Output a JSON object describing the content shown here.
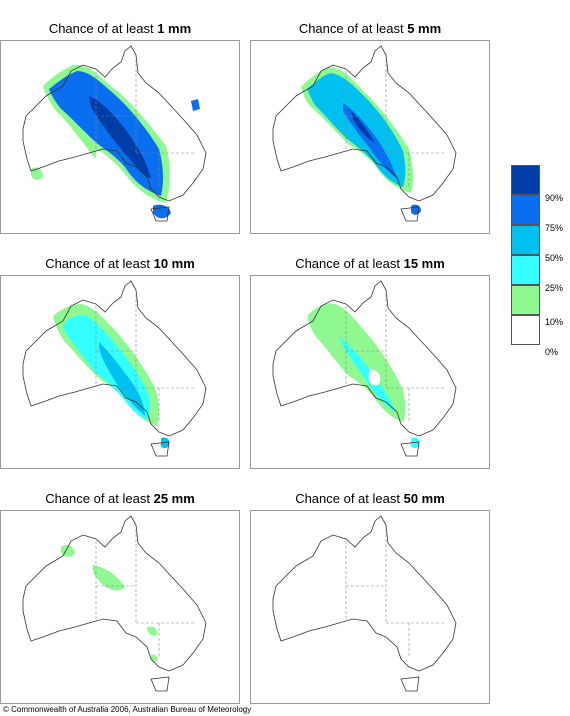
{
  "panels": [
    {
      "title_prefix": "Chance of at least ",
      "amount": "1 mm"
    },
    {
      "title_prefix": "Chance of at least ",
      "amount": "5 mm"
    },
    {
      "title_prefix": "Chance of at least ",
      "amount": "10 mm"
    },
    {
      "title_prefix": "Chance of at least ",
      "amount": "15 mm"
    },
    {
      "title_prefix": "Chance of at least ",
      "amount": "25 mm"
    },
    {
      "title_prefix": "Chance of at least ",
      "amount": "50 mm"
    }
  ],
  "legend": {
    "bands": [
      {
        "color": "#003da6"
      },
      {
        "color": "#0a6ef0"
      },
      {
        "color": "#00c0f0"
      },
      {
        "color": "#33ffff"
      },
      {
        "color": "#90f890"
      },
      {
        "color": "#ffffff"
      }
    ],
    "labels": [
      "90%",
      "75%",
      "50%",
      "25%",
      "10%",
      "0%"
    ]
  },
  "copyright": "© Commonwealth of Australia 2006, Australian Bureau of Meteorology"
}
